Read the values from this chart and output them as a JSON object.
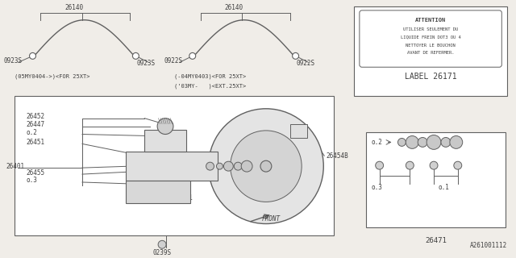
{
  "bg_color": "#f0ede8",
  "line_color": "#606060",
  "text_color": "#404040",
  "part_number": "A261001112",
  "attention_lines": [
    "ATTENTION",
    "UTILISER SEULEMENT DU",
    "LIQUIDE FREIN DOT3 OU 4",
    "NETTOYER LE BOUCHON",
    "AVANT DE REFERMER."
  ],
  "label_26171": "LABEL 26171",
  "label_26471": "26471"
}
